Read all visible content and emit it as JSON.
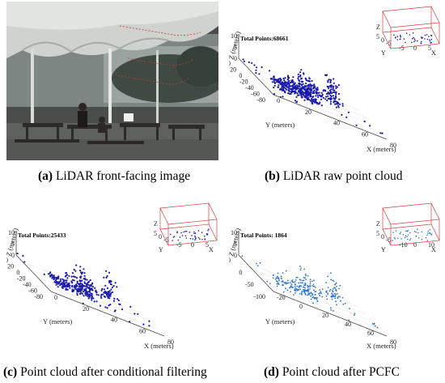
{
  "figure": {
    "panels": [
      {
        "id": "a",
        "type": "photo",
        "caption_letter": "(a)",
        "caption_text": " LiDAR front-facing image"
      },
      {
        "id": "b",
        "type": "pointcloud",
        "caption_letter": "(b)",
        "caption_text": " LiDAR raw point cloud",
        "total_points": "Total Points:68661",
        "point_color": "#1a1aa8",
        "x_label": "X (meters)",
        "y_label": "Y (meters)",
        "z_label": "Z (meters)",
        "x_ticks": [
          "0",
          "20",
          "40",
          "60",
          "80"
        ],
        "y_ticks": [
          "40",
          "20",
          "0",
          "-20",
          "-40",
          "-60",
          "-80"
        ],
        "z_ticks": [
          "0",
          "5",
          "10"
        ],
        "inset": {
          "z_label": "Z",
          "y_label": "Y",
          "x_label": "X",
          "x_ticks": [
            "-5",
            "0",
            "5"
          ],
          "y_ticks": [
            "5",
            "0",
            "-5"
          ]
        }
      },
      {
        "id": "c",
        "type": "pointcloud",
        "caption_letter": "(c)",
        "caption_text": " Point cloud after conditional filtering",
        "total_points": "Total Points:25433",
        "point_color": "#1a1aa8",
        "x_label": "X (meters)",
        "y_label": "Y (meters)",
        "z_label": "Z (meters)",
        "x_ticks": [
          "0",
          "20",
          "40",
          "60",
          "80"
        ],
        "y_ticks": [
          "40",
          "20",
          "0",
          "-20",
          "-40",
          "-60",
          "-80"
        ],
        "z_ticks": [
          "0",
          "5",
          "10"
        ],
        "inset": {
          "z_label": "Z",
          "y_label": "Y",
          "x_label": "X",
          "x_ticks": [
            "-5",
            "0",
            "5"
          ],
          "y_ticks": [
            "5",
            "0",
            "-5"
          ]
        }
      },
      {
        "id": "d",
        "type": "pointcloud",
        "caption_letter": "(d)",
        "caption_text": " Point cloud after PCFC",
        "total_points": "Total Points: 1864",
        "point_color": "#2e78c8",
        "x_label": "X (meters)",
        "y_label": "Y (meters)",
        "z_label": "Z (meters)",
        "x_ticks": [
          "-20",
          "0",
          "20",
          "40",
          "60",
          "80"
        ],
        "y_ticks": [
          "50",
          "0",
          "-50",
          "-100"
        ],
        "z_ticks": [
          "0",
          "5",
          "10"
        ],
        "inset": {
          "z_label": "Z",
          "y_label": "Y",
          "x_label": "X",
          "x_ticks": [
            "-10",
            "0",
            "10"
          ],
          "y_ticks": [
            "5",
            "0",
            "-5"
          ]
        }
      }
    ]
  }
}
